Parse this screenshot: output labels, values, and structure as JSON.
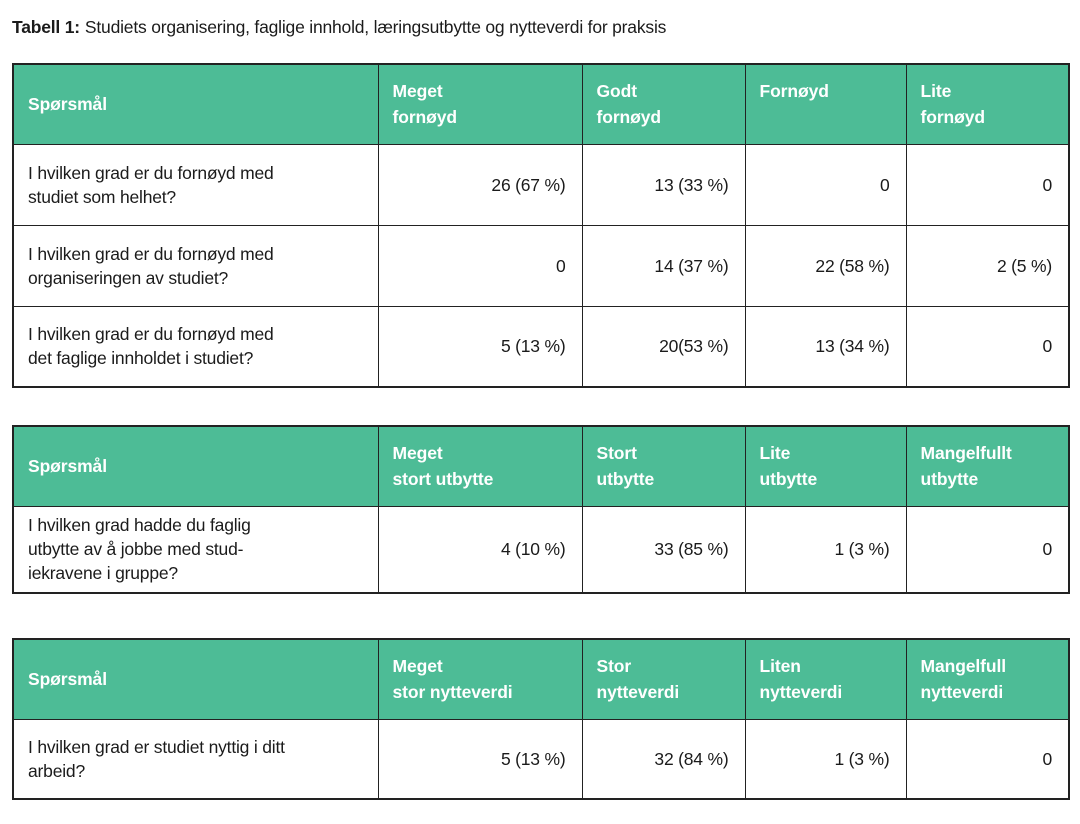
{
  "title": {
    "prefix": "Tabell 1:",
    "text": "Studiets organisering, faglige innhold, læringsutbytte og nytteverdi for praksis"
  },
  "colors": {
    "header_bg": "#4dbc96",
    "header_text": "#ffffff",
    "border": "#222222",
    "body_text": "#1b1b1b"
  },
  "tables": [
    {
      "headers": [
        "Spørsmål",
        "Meget\nfornøyd",
        "Godt\nfornøyd",
        "Fornøyd",
        "Lite\nfornøyd"
      ],
      "rows": [
        {
          "question": "I hvilken grad er du fornøyd med\nstudiet som helhet?",
          "values": [
            "26 (67 %)",
            "13 (33 %)",
            "0",
            "0"
          ]
        },
        {
          "question": "I hvilken grad er du fornøyd med\norganiseringen av studiet?",
          "values": [
            "0",
            "14 (37 %)",
            "22 (58 %)",
            "2 (5 %)"
          ]
        },
        {
          "question": "I hvilken grad er du fornøyd med\ndet faglige innholdet i studiet?",
          "values": [
            "5 (13 %)",
            "20(53 %)",
            "13 (34 %)",
            "0"
          ]
        }
      ]
    },
    {
      "headers": [
        "Spørsmål",
        "Meget\nstort utbytte",
        "Stort\nutbytte",
        "Lite\nutbytte",
        "Mangelfullt\nutbytte"
      ],
      "rows": [
        {
          "question": "I hvilken grad hadde du faglig\nutbytte av å jobbe med stud-\niekravene i gruppe?",
          "values": [
            "4 (10 %)",
            "33 (85 %)",
            "1 (3 %)",
            "0"
          ]
        }
      ]
    },
    {
      "headers": [
        "Spørsmål",
        "Meget\nstor nytteverdi",
        "Stor\nnytteverdi",
        "Liten\nnytteverdi",
        "Mangelfull\nnytteverdi"
      ],
      "rows": [
        {
          "question": "I hvilken grad er studiet nyttig i ditt\narbeid?",
          "values": [
            "5 (13 %)",
            "32 (84 %)",
            "1 (3 %)",
            "0"
          ]
        }
      ]
    }
  ]
}
